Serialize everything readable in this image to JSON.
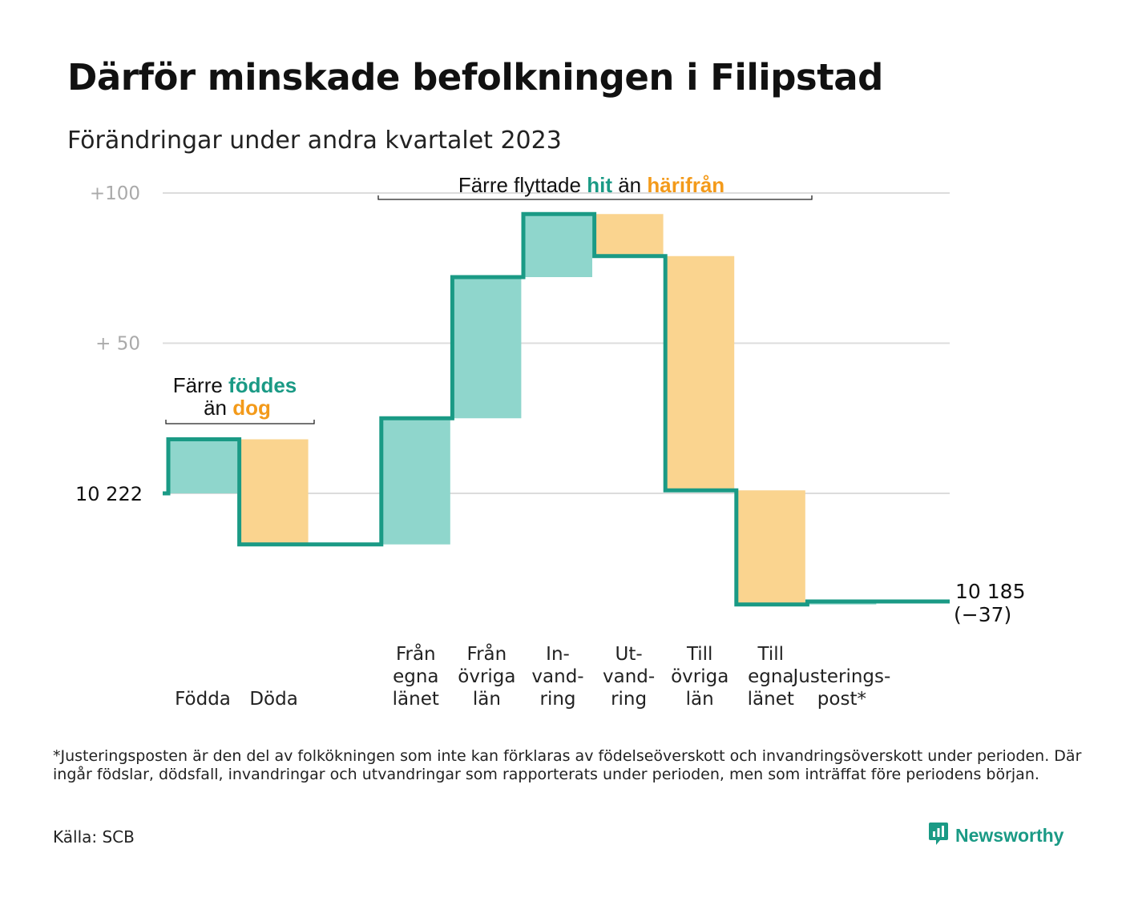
{
  "title": "Därför minskade befolkningen i Filipstad",
  "subtitle": "Förändringar under andra kvartalet 2023",
  "colors": {
    "increase": "#8fd6cc",
    "decrease": "#fad48f",
    "line": "#1a9a85",
    "teal_text": "#1a9a85",
    "orange_text": "#f39a1a",
    "grid": "#dcdcdc",
    "tick_text": "#aaaaaa"
  },
  "chart_data": {
    "type": "waterfall",
    "start_value": 10222,
    "end_value": 10185,
    "end_label": "10 185",
    "end_change_label": "(−37)",
    "baseline_label": "10  222",
    "y_ticks": [
      {
        "value": 10322,
        "label": "+100"
      },
      {
        "value": 10272,
        "label": "+  50"
      }
    ],
    "ylim": [
      10165,
      10330
    ],
    "grid": true,
    "steps": [
      {
        "label": [
          "Födda"
        ],
        "change": 18
      },
      {
        "label": [
          "Döda"
        ],
        "change": -35
      },
      {
        "label": [],
        "change": 0
      },
      {
        "label": [
          "Från",
          "egna",
          "länet"
        ],
        "change": 42
      },
      {
        "label": [
          "Från",
          "övriga",
          "län"
        ],
        "change": 47
      },
      {
        "label": [
          "In-",
          "vand-",
          "ring"
        ],
        "change": 21
      },
      {
        "label": [
          "Ut-",
          "vand-",
          "ring"
        ],
        "change": -14
      },
      {
        "label": [
          "Till",
          "övriga",
          "län"
        ],
        "change": -78
      },
      {
        "label": [
          "Till",
          "egna",
          "länet"
        ],
        "change": -38
      },
      {
        "label": [
          "Justerings-",
          "post*"
        ],
        "change": 1
      }
    ],
    "annotations": [
      {
        "parts": [
          "Färre ",
          "föddes"
        ],
        "parts2": [
          "än ",
          "dog"
        ]
      },
      {
        "parts": [
          "Färre flyttade ",
          "hit",
          " än ",
          "härifrån"
        ]
      }
    ]
  },
  "footnote": "*Justeringsposten är den del av folkökningen som inte kan förklaras av födelseöverskott och invandringsöverskott under perioden. Där ingår födslar, dödsfall, invandringar och utvandringar som rapporterats under perioden, men som inträffat före periodens början.",
  "source": "Källa: SCB",
  "brand": "Newsworthy",
  "brand_icon": "newsworthy-logo-icon"
}
